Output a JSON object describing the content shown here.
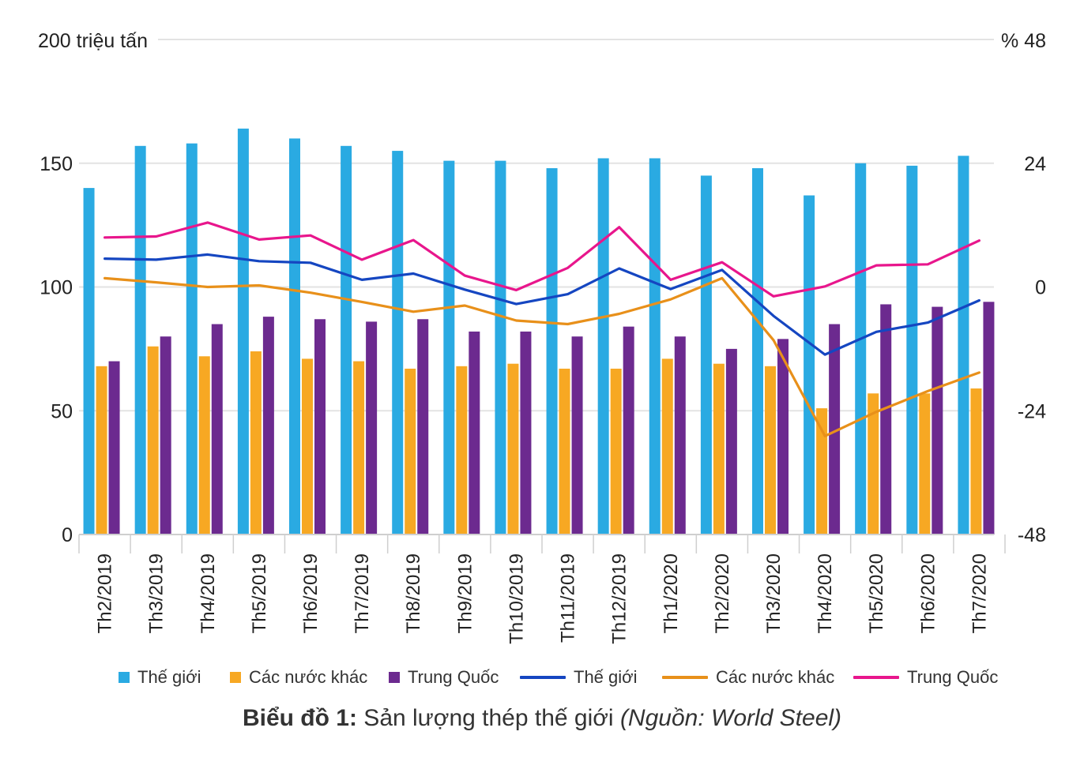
{
  "chart_data": {
    "type": "bar+line",
    "title": "",
    "left_axis_label": "200 triệu tấn",
    "right_axis_label": "% 48",
    "left_ylim": [
      0,
      200
    ],
    "left_ticks": [
      "0",
      "50",
      "100",
      "150"
    ],
    "right_ylim": [
      -48,
      48
    ],
    "right_ticks": [
      "-48",
      "-24",
      "0",
      "24"
    ],
    "categories": [
      "Th2/2019",
      "Th3/2019",
      "Th4/2019",
      "Th5/2019",
      "Th6/2019",
      "Th7/2019",
      "Th8/2019",
      "Th9/2019",
      "Th10/2019",
      "Th11/2019",
      "Th12/2019",
      "Th1/2020",
      "Th2/2020",
      "Th3/2020",
      "Th4/2020",
      "Th5/2020",
      "Th6/2020",
      "Th7/2020"
    ],
    "bar_series": [
      {
        "name": "Thế giới",
        "color": "#2aaae2",
        "values": [
          140,
          157,
          158,
          164,
          160,
          157,
          155,
          151,
          151,
          148,
          152,
          152,
          145,
          148,
          137,
          150,
          149,
          153
        ]
      },
      {
        "name": "Các nước khác",
        "color": "#f7a823",
        "values": [
          68,
          76,
          72,
          74,
          71,
          70,
          67,
          68,
          69,
          67,
          67,
          71,
          69,
          68,
          51,
          57,
          57,
          59
        ]
      },
      {
        "name": "Trung Quốc",
        "color": "#6c2a8f",
        "values": [
          70,
          80,
          85,
          88,
          87,
          86,
          87,
          82,
          82,
          80,
          84,
          80,
          75,
          79,
          85,
          93,
          92,
          94
        ]
      }
    ],
    "line_series": [
      {
        "name": "Thế giới",
        "color": "#1546c1",
        "values": [
          5.5,
          5.3,
          6.3,
          5.0,
          4.7,
          1.4,
          2.6,
          -0.5,
          -3.3,
          -1.4,
          3.6,
          -0.4,
          3.3,
          -5.6,
          -13.1,
          -8.7,
          -6.9,
          -2.6
        ]
      },
      {
        "name": "Các nước khác",
        "color": "#e8901a",
        "values": [
          1.7,
          0.9,
          0.0,
          0.3,
          -1.1,
          -2.9,
          -4.8,
          -3.6,
          -6.5,
          -7.2,
          -5.2,
          -2.4,
          1.7,
          -10.3,
          -28.9,
          -24.2,
          -20.2,
          -16.6
        ]
      },
      {
        "name": "Trung Quốc",
        "color": "#e8168c",
        "values": [
          9.6,
          9.8,
          12.5,
          9.2,
          10.0,
          5.3,
          9.1,
          2.2,
          -0.6,
          3.7,
          11.6,
          1.4,
          4.8,
          -1.8,
          0.1,
          4.2,
          4.4,
          9.0
        ]
      }
    ]
  },
  "caption": {
    "bold": "Biểu đồ 1:",
    "text": " Sản lượng thép thế giới ",
    "italic": "(Nguồn: World Steel)"
  }
}
